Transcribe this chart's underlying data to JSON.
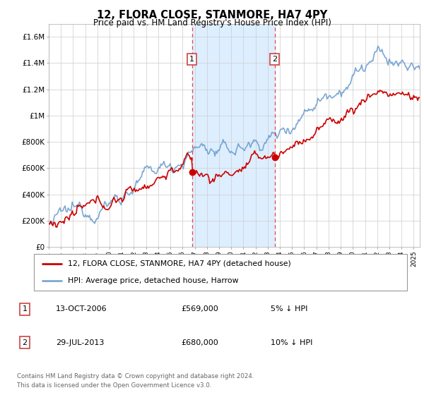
{
  "title": "12, FLORA CLOSE, STANMORE, HA7 4PY",
  "subtitle": "Price paid vs. HM Land Registry's House Price Index (HPI)",
  "ylabel_ticks": [
    "£0",
    "£200K",
    "£400K",
    "£600K",
    "£800K",
    "£1M",
    "£1.2M",
    "£1.4M",
    "£1.6M"
  ],
  "ytick_values": [
    0,
    200000,
    400000,
    600000,
    800000,
    1000000,
    1200000,
    1400000,
    1600000
  ],
  "ylim": [
    0,
    1700000
  ],
  "xlim_start": 1995.0,
  "xlim_end": 2025.5,
  "vline1_year": 2006.78,
  "vline2_year": 2013.57,
  "marker1_price": 569000,
  "marker2_price": 680000,
  "legend_line1": "12, FLORA CLOSE, STANMORE, HA7 4PY (detached house)",
  "legend_line2": "HPI: Average price, detached house, Harrow",
  "table_row1": [
    "1",
    "13-OCT-2006",
    "£569,000",
    "5% ↓ HPI"
  ],
  "table_row2": [
    "2",
    "29-JUL-2013",
    "£680,000",
    "10% ↓ HPI"
  ],
  "footer1": "Contains HM Land Registry data © Crown copyright and database right 2024.",
  "footer2": "This data is licensed under the Open Government Licence v3.0.",
  "red_color": "#cc0000",
  "blue_line_color": "#6699cc",
  "bg_color": "#ffffff",
  "grid_color": "#cccccc",
  "shade_color": "#ddeeff"
}
